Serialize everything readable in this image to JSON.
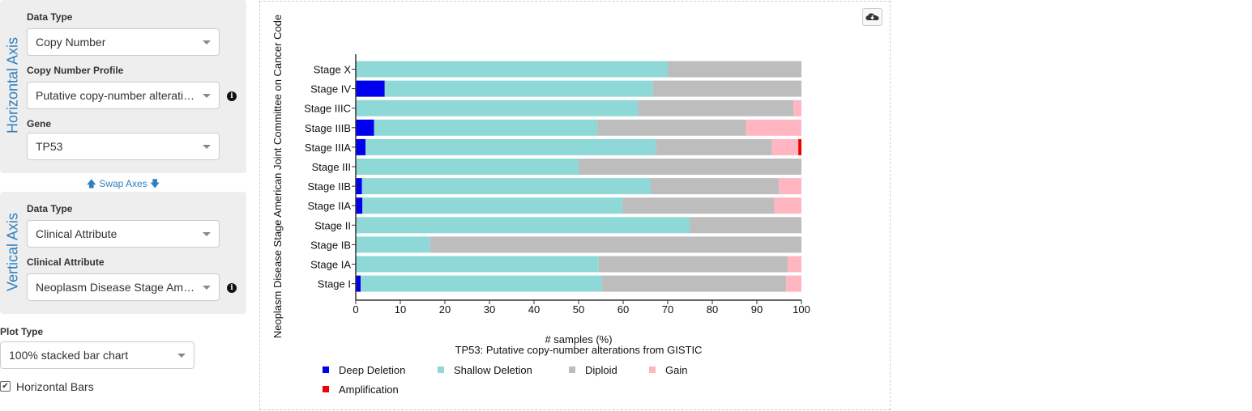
{
  "horizontal_axis": {
    "title": "Horizontal Axis",
    "data_type_label": "Data Type",
    "data_type_value": "Copy Number",
    "profile_label": "Copy Number Profile",
    "profile_value": "Putative copy-number alterations from GISTIC",
    "gene_label": "Gene",
    "gene_value": "TP53"
  },
  "swap_label": "Swap Axes",
  "vertical_axis": {
    "title": "Vertical Axis",
    "data_type_label": "Data Type",
    "data_type_value": "Clinical Attribute",
    "clinical_label": "Clinical Attribute",
    "clinical_value": "Neoplasm Disease Stage American Joint Committee on Cancer Code"
  },
  "plot_type": {
    "label": "Plot Type",
    "value": "100% stacked bar chart"
  },
  "horizontal_bars_label": "Horizontal Bars",
  "chart_data": {
    "type": "bar",
    "stacked": true,
    "orientation": "horizontal",
    "categories": [
      "Stage X",
      "Stage IV",
      "Stage IIIC",
      "Stage IIIB",
      "Stage IIIA",
      "Stage III",
      "Stage IIB",
      "Stage IIA",
      "Stage II",
      "Stage IB",
      "Stage IA",
      "Stage I"
    ],
    "series": [
      {
        "name": "Deep Deletion",
        "color": "#0000ee",
        "values": [
          0,
          6.5,
          0,
          4.1,
          2.2,
          0,
          1.4,
          1.5,
          0,
          0,
          0,
          1.1
        ]
      },
      {
        "name": "Shallow Deletion",
        "color": "#8fd8d8",
        "values": [
          70,
          60.2,
          63.3,
          50.1,
          65.1,
          50,
          64.7,
          58.3,
          75,
          16.7,
          54.5,
          54.1
        ]
      },
      {
        "name": "Diploid",
        "color": "#bdbdbd",
        "values": [
          30,
          33.3,
          34.9,
          33.4,
          26.1,
          50,
          28.8,
          34.1,
          25,
          83.3,
          42.4,
          41.4
        ]
      },
      {
        "name": "Gain",
        "color": "#ffb6c1",
        "values": [
          0,
          0,
          1.8,
          12.4,
          5.9,
          0,
          5.1,
          6.1,
          0,
          0,
          3.1,
          3.4
        ]
      },
      {
        "name": "Amplification",
        "color": "#ee0000",
        "values": [
          0,
          0,
          0,
          0,
          0.7,
          0,
          0,
          0,
          0,
          0,
          0,
          0
        ]
      }
    ],
    "xlabel": "# samples (%)",
    "subtitle": "TP53: Putative copy-number alterations from GISTIC",
    "ylabel": "Neoplasm Disease Stage American Joint Committee on Cancer Code",
    "xlim": [
      0,
      100
    ],
    "xticks": [
      0,
      10,
      20,
      30,
      40,
      50,
      60,
      70,
      80,
      90,
      100
    ],
    "legend_position": "bottom"
  }
}
